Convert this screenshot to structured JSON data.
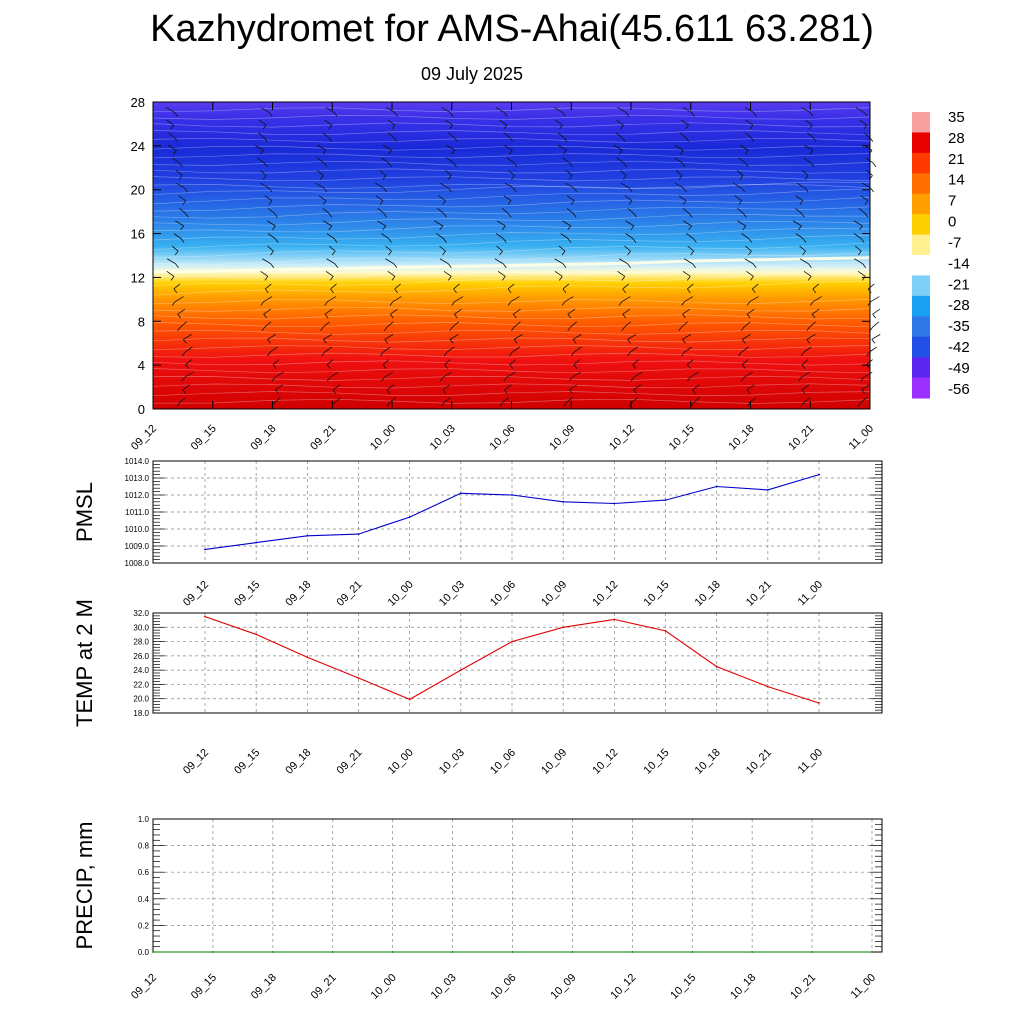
{
  "title": "Kazhydromet for AMS-Ahai(45.611 63.281)",
  "subtitle": "09 July 2025",
  "colors": {
    "pmsl_line": "#0000cc",
    "temp_line": "#e00000",
    "precip_line": "#007700",
    "colorbar": [
      "#9b30ff",
      "#5a28f0",
      "#2050e6",
      "#2f78e8",
      "#1aa0f0",
      "#7ed0f8",
      "#ffffff",
      "#fff090",
      "#ffd000",
      "#ffa000",
      "#ff7000",
      "#ff3a00",
      "#e60000",
      "#f7a0a0"
    ]
  },
  "chart_data": [
    {
      "type": "heatmap",
      "name": "temperature_cross_section",
      "x_tick_labels": [
        "09_12",
        "09_15",
        "09_18",
        "09_21",
        "10_00",
        "10_03",
        "10_06",
        "10_09",
        "10_12",
        "10_15",
        "10_18",
        "10_21",
        "11_00"
      ],
      "y_tick_labels": [
        "0",
        "4",
        "8",
        "12",
        "16",
        "20",
        "24",
        "28"
      ],
      "ylim": [
        0,
        28
      ],
      "colorbar_labels": [
        "35",
        "28",
        "21",
        "14",
        "7",
        "0",
        "-7",
        "-14",
        "-21",
        "-28",
        "-35",
        "-42",
        "-49",
        "-56"
      ],
      "freezing_level": [
        12.5,
        12.6,
        12.7,
        12.8,
        12.9,
        13.0,
        13.1,
        13.2,
        13.3,
        13.5,
        13.6,
        13.7,
        13.8
      ],
      "wind_barbs": true
    },
    {
      "type": "line",
      "name": "pmsl",
      "ylabel": "PMSL",
      "x_tick_labels": [
        "09_12",
        "09_15",
        "09_18",
        "09_21",
        "10_00",
        "10_03",
        "10_06",
        "10_09",
        "10_12",
        "10_15",
        "10_18",
        "10_21",
        "11_00"
      ],
      "y_tick_labels": [
        "1008.0",
        "1009.0",
        "1010.0",
        "1011.0",
        "1012.0",
        "1013.0",
        "1014.0"
      ],
      "ylim": [
        1008.0,
        1014.0
      ],
      "values": [
        1008.8,
        1009.2,
        1009.6,
        1009.7,
        1010.7,
        1012.1,
        1012.0,
        1011.6,
        1011.5,
        1011.7,
        1012.5,
        1012.3,
        1013.2
      ]
    },
    {
      "type": "line",
      "name": "temp2m",
      "ylabel": "TEMP at 2 M",
      "x_tick_labels": [
        "09_12",
        "09_15",
        "09_18",
        "09_21",
        "10_00",
        "10_03",
        "10_06",
        "10_09",
        "10_12",
        "10_15",
        "10_18",
        "10_21",
        "11_00"
      ],
      "y_tick_labels": [
        "18.0",
        "20.0",
        "22.0",
        "24.0",
        "26.0",
        "28.0",
        "30.0",
        "32.0"
      ],
      "ylim": [
        18.0,
        32.0
      ],
      "values": [
        31.5,
        29.0,
        25.8,
        22.9,
        19.9,
        24.0,
        28.0,
        30.0,
        31.1,
        29.5,
        24.5,
        21.7,
        19.4
      ]
    },
    {
      "type": "line",
      "name": "precip",
      "ylabel": "PRECIP, mm",
      "x_tick_labels": [
        "09_12",
        "09_15",
        "09_18",
        "09_21",
        "10_00",
        "10_03",
        "10_06",
        "10_09",
        "10_12",
        "10_15",
        "10_18",
        "10_21",
        "11_00"
      ],
      "y_tick_labels": [
        "0.0",
        "0.2",
        "0.4",
        "0.6",
        "0.8",
        "1.0"
      ],
      "ylim": [
        0.0,
        1.0
      ],
      "values": [
        0,
        0,
        0,
        0,
        0,
        0,
        0,
        0,
        0,
        0,
        0,
        0,
        0
      ]
    }
  ]
}
